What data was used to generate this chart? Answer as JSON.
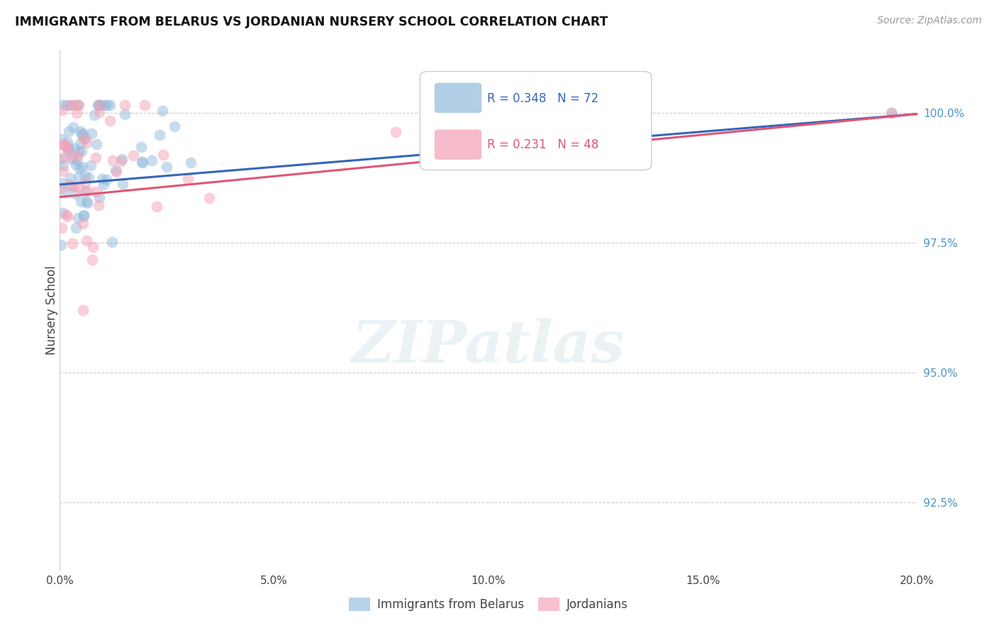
{
  "title": "IMMIGRANTS FROM BELARUS VS JORDANIAN NURSERY SCHOOL CORRELATION CHART",
  "source": "Source: ZipAtlas.com",
  "xlabel_values": [
    0.0,
    5.0,
    10.0,
    15.0,
    20.0
  ],
  "ylabel_values": [
    92.5,
    95.0,
    97.5,
    100.0
  ],
  "xlim": [
    0.0,
    20.0
  ],
  "ylim": [
    91.2,
    101.2
  ],
  "blue_color": "#92bbdc",
  "pink_color": "#f4a0b5",
  "blue_line_color": "#3366bb",
  "pink_line_color": "#e05575",
  "blue_R": 0.348,
  "blue_N": 72,
  "pink_R": 0.231,
  "pink_N": 48,
  "legend_label_blue": "Immigrants from Belarus",
  "legend_label_pink": "Jordanians",
  "ylabel": "Nursery School",
  "ytick_color": "#4d94cc",
  "grid_color": "#cccccc",
  "blue_line_y0": 98.62,
  "blue_line_y1": 99.98,
  "pink_line_y0": 98.38,
  "pink_line_y1": 99.98
}
